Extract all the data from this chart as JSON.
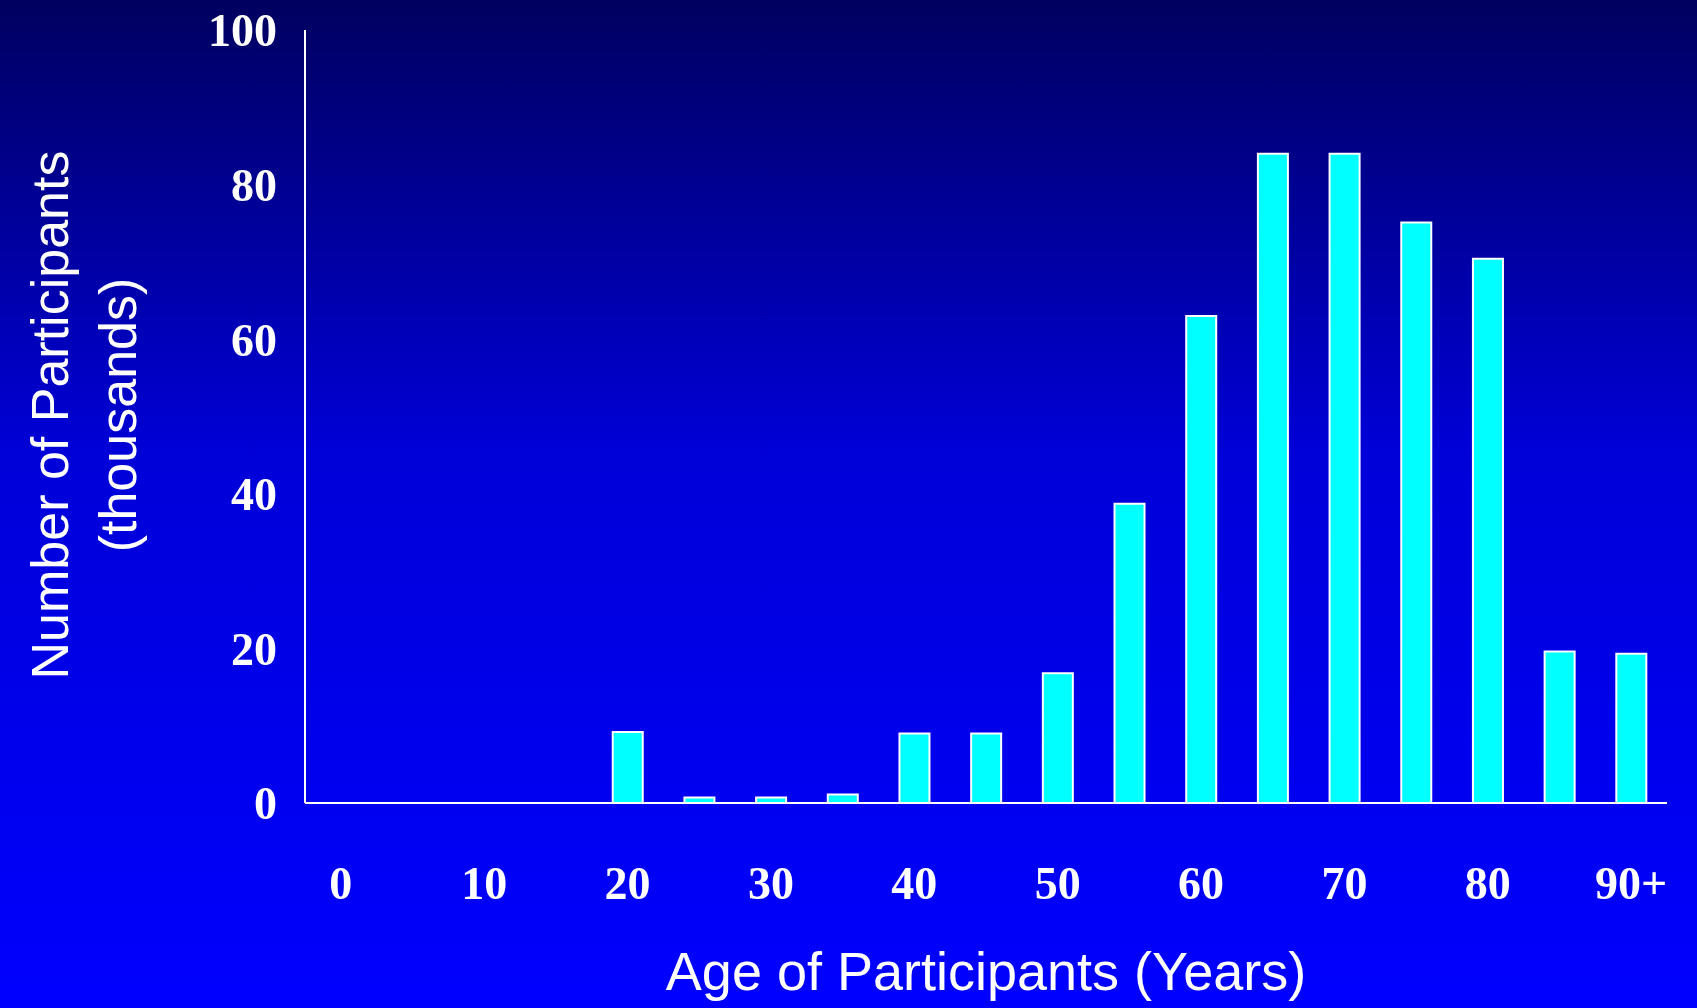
{
  "chart_data": {
    "type": "bar",
    "xlabel": "Age of Participants (Years)",
    "ylabel": "Number of Participants (thousands)",
    "categories": [
      "0",
      null,
      "10",
      null,
      "20",
      null,
      "30",
      null,
      "40",
      null,
      "50",
      null,
      "60",
      null,
      "70",
      null,
      "80",
      null,
      "90+"
    ],
    "values": [
      0,
      0,
      0,
      0,
      9.2,
      0.7,
      0.7,
      1.1,
      9,
      9,
      16.8,
      38.7,
      63,
      84,
      84,
      75.1,
      70.4,
      19.6,
      19.3
    ],
    "color": "#00ffff",
    "ylim": [
      0,
      100
    ],
    "yticks": [
      0,
      20,
      40,
      60,
      80,
      100
    ]
  }
}
